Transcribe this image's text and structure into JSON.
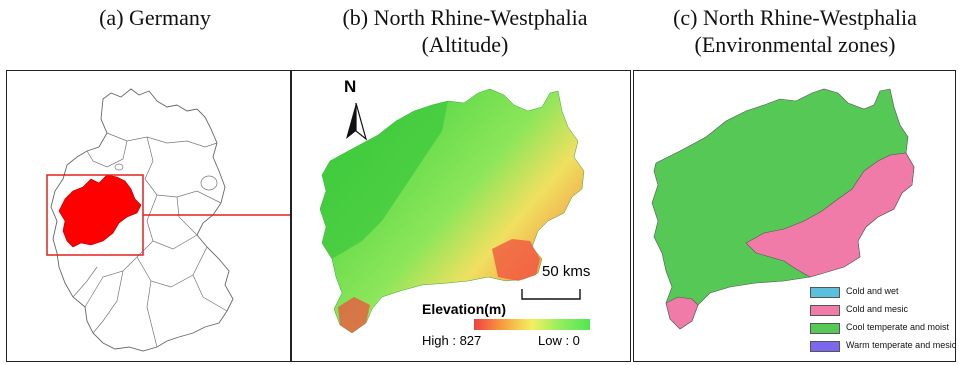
{
  "titles": {
    "a": "(a) Germany",
    "b_line1": "(b) North Rhine-Westphalia",
    "b_line2": "(Altitude)",
    "c_line1": "(c) North Rhine-Westphalia",
    "c_line2": "(Environmental zones)"
  },
  "colors": {
    "nrw_highlight": "#ff0000",
    "germany_outline": "#666666",
    "zone_cool": "#55c855",
    "zone_cold_mesic": "#f07aa8",
    "zone_cold_wet": "#5bc0de",
    "zone_warm": "#7b68ee"
  },
  "altitude": {
    "north_label": "N",
    "scale_label": "50 kms",
    "legend_title": "Elevation(m)",
    "high_label": "High : 827",
    "low_label": "Low : 0"
  },
  "zones": {
    "legend": [
      {
        "label": "Cold and wet",
        "color": "#5bc0de"
      },
      {
        "label": "Cold and mesic",
        "color": "#f07aa8"
      },
      {
        "label": "Cool temperate and moist",
        "color": "#55c855"
      },
      {
        "label": "Warm temperate and mesic",
        "color": "#7b68ee"
      }
    ]
  }
}
